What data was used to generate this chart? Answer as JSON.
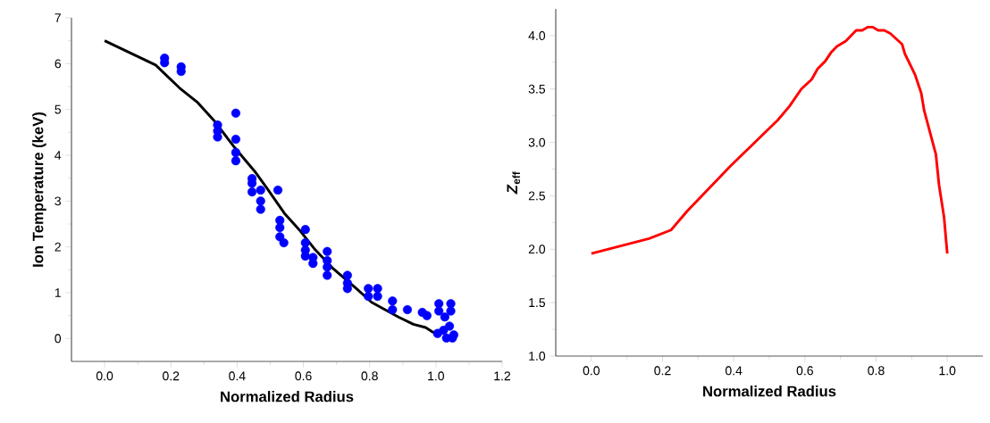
{
  "chart_data": [
    {
      "type": "scatter",
      "xlabel": "Normalized Radius",
      "ylabel": "Ion Temperature (keV)",
      "xlim": [
        -0.1,
        1.2
      ],
      "ylim": [
        -0.5,
        7
      ],
      "xticks": [
        {
          "value": 0,
          "label": "0.0"
        },
        {
          "value": 0.2,
          "label": "0.2"
        },
        {
          "value": 0.4,
          "label": "0.4"
        },
        {
          "value": 0.6,
          "label": "0.6"
        },
        {
          "value": 0.8,
          "label": "0.8"
        },
        {
          "value": 1.0,
          "label": "1.0"
        },
        {
          "value": 1.2,
          "label": "1.2"
        }
      ],
      "yticks": [
        0,
        1,
        2,
        3,
        4,
        5,
        6,
        7
      ],
      "series": [
        {
          "marker": "circle",
          "color": "#0000ff",
          "x": [
            0.181,
            0.181,
            0.231,
            0.231,
            0.341,
            0.341,
            0.341,
            0.396,
            0.396,
            0.396,
            0.396,
            0.445,
            0.445,
            0.445,
            0.471,
            0.471,
            0.471,
            0.523,
            0.529,
            0.529,
            0.529,
            0.541,
            0.606,
            0.606,
            0.606,
            0.606,
            0.629,
            0.629,
            0.672,
            0.672,
            0.672,
            0.672,
            0.733,
            0.733,
            0.733,
            0.796,
            0.824,
            0.796,
            0.824,
            0.869,
            0.869,
            0.914,
            0.959,
            0.973,
            1.009,
            1.045,
            1.009,
            1.045,
            1.027,
            1.005,
            1.023,
            1.041,
            1.054,
            1.032,
            1.05
          ],
          "values": [
            6.12,
            6.02,
            5.93,
            5.83,
            4.66,
            4.53,
            4.4,
            4.92,
            4.35,
            4.06,
            3.88,
            3.49,
            3.39,
            3.2,
            3.24,
            3.0,
            2.82,
            3.24,
            2.58,
            2.42,
            2.22,
            2.09,
            2.38,
            2.09,
            1.93,
            1.8,
            1.77,
            1.64,
            1.9,
            1.7,
            1.56,
            1.38,
            1.38,
            1.21,
            1.09,
            1.09,
            1.09,
            0.92,
            0.92,
            0.82,
            0.63,
            0.63,
            0.57,
            0.5,
            0.76,
            0.76,
            0.6,
            0.6,
            0.47,
            0.11,
            0.18,
            0.27,
            0.08,
            0.01,
            0.01
          ]
        },
        {
          "type": "line",
          "color": "#000000",
          "x": [
            0,
            0.154,
            0.226,
            0.281,
            0.33,
            0.389,
            0.453,
            0.489,
            0.543,
            0.588,
            0.633,
            0.688,
            0.76,
            0.806,
            0.887,
            0.932,
            0.969,
            0.991,
            1.0
          ],
          "values": [
            6.5,
            5.97,
            5.47,
            5.15,
            4.76,
            4.2,
            3.65,
            3.29,
            2.73,
            2.37,
            1.96,
            1.54,
            1.09,
            0.79,
            0.47,
            0.31,
            0.24,
            0.14,
            0.12
          ]
        }
      ]
    },
    {
      "type": "line",
      "xlabel": "Normalized Radius",
      "ylabel": "*Z*$_{eff}$",
      "xlim": [
        -0.1,
        1.1
      ],
      "ylim": [
        1.0,
        4.25
      ],
      "xticks": [
        {
          "value": 0,
          "label": "0.0"
        },
        {
          "value": 0.2,
          "label": "0.2"
        },
        {
          "value": 0.4,
          "label": "0.4"
        },
        {
          "value": 0.6,
          "label": "0.6"
        },
        {
          "value": 0.8,
          "label": "0.8"
        },
        {
          "value": 1.0,
          "label": "1.0"
        }
      ],
      "yticks": [
        {
          "value": 1.0,
          "label": "1.0"
        },
        {
          "value": 1.5,
          "label": "1.5"
        },
        {
          "value": 2.0,
          "label": "2.0"
        },
        {
          "value": 2.5,
          "label": "2.5"
        },
        {
          "value": 3.0,
          "label": "3.0"
        },
        {
          "value": 3.5,
          "label": "3.5"
        },
        {
          "value": 4.0,
          "label": "4.0"
        }
      ],
      "series": [
        {
          "color": "#ff0000",
          "x": [
            0,
            0.162,
            0.224,
            0.27,
            0.391,
            0.524,
            0.557,
            0.59,
            0.619,
            0.636,
            0.657,
            0.673,
            0.69,
            0.715,
            0.744,
            0.761,
            0.777,
            0.79,
            0.806,
            0.823,
            0.84,
            0.873,
            0.881,
            0.91,
            0.927,
            0.935,
            0.968,
            0.977,
            0.991,
            1.0
          ],
          "values": [
            1.96,
            2.1,
            2.18,
            2.36,
            2.78,
            3.21,
            3.34,
            3.5,
            3.59,
            3.69,
            3.76,
            3.84,
            3.9,
            3.95,
            4.05,
            4.05,
            4.08,
            4.08,
            4.05,
            4.05,
            4.02,
            3.92,
            3.83,
            3.63,
            3.46,
            3.3,
            2.89,
            2.6,
            2.3,
            1.96
          ]
        }
      ]
    }
  ]
}
